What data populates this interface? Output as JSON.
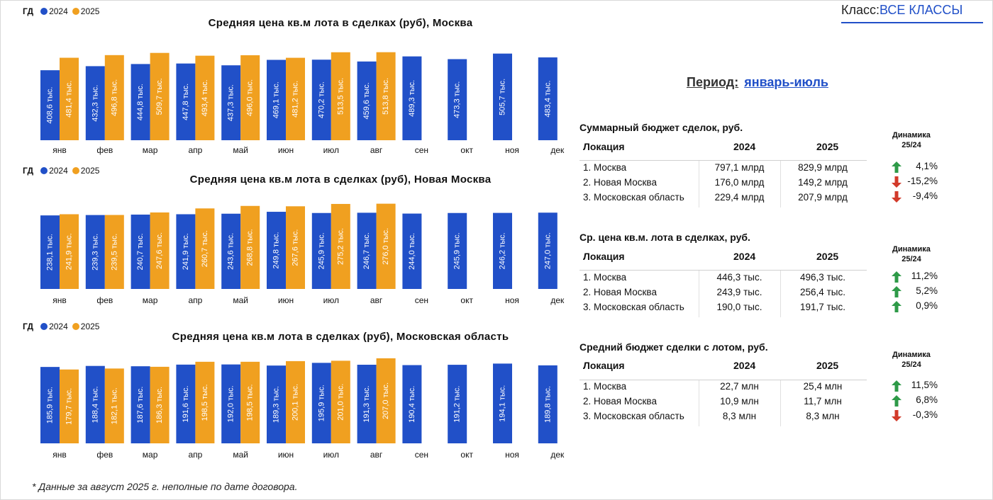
{
  "header": {
    "class_label": "Класс:",
    "class_value": "ВСЕ КЛАССЫ"
  },
  "period": {
    "label": "Период:",
    "value": "январь-июль"
  },
  "legend": {
    "gd": "ГД",
    "series": [
      {
        "name": "2024",
        "color": "#2150c8"
      },
      {
        "name": "2025",
        "color": "#f0a020"
      }
    ]
  },
  "colors": {
    "y2024": "#2150c8",
    "y2025": "#f0a020",
    "up": "#2e9a48",
    "down": "#d23a2a"
  },
  "chart_data": [
    {
      "type": "bar",
      "title": "Средняя цена кв.м  лота в сделках (руб), Москва",
      "categories": [
        "янв",
        "фев",
        "мар",
        "апр",
        "май",
        "июн",
        "июл",
        "авг",
        "сен",
        "окт",
        "ноя",
        "дек"
      ],
      "series": [
        {
          "name": "2024",
          "values": [
            408.6,
            432.3,
            444.8,
            447.8,
            437.3,
            469.1,
            470.2,
            459.6,
            489.3,
            473.3,
            505.7,
            483.4
          ],
          "labels": [
            "408,6 тыс.",
            "432,3 тыс.",
            "444,8 тыс.",
            "447,8 тыс.",
            "437,3 тыс.",
            "469,1 тыс.",
            "470,2 тыс.",
            "459,6 тыс.",
            "489,3 тыс.",
            "473,3 тыс.",
            "505,7 тыс.",
            "483,4 тыс."
          ]
        },
        {
          "name": "2025",
          "values": [
            481.4,
            496.8,
            509.7,
            493.4,
            496.0,
            481.2,
            513.5,
            513.8,
            null,
            null,
            null,
            null
          ],
          "labels": [
            "481,4 тыс.",
            "496,8 тыс.",
            "509,7 тыс.",
            "493,4 тыс.",
            "496,0 тыс.",
            "481,2 тыс.",
            "513,5 тыс.",
            "513,8 тыс.",
            "",
            "",
            "",
            ""
          ]
        }
      ],
      "xlabel": "",
      "ylabel": "",
      "ylim": [
        0,
        525
      ]
    },
    {
      "type": "bar",
      "title": "Средняя цена кв.м  лота в сделках (руб), Новая Москва",
      "categories": [
        "янв",
        "фев",
        "мар",
        "апр",
        "май",
        "июн",
        "июл",
        "авг",
        "сен",
        "окт",
        "ноя",
        "дек"
      ],
      "series": [
        {
          "name": "2024",
          "values": [
            238.1,
            239.3,
            240.7,
            241.9,
            243.6,
            249.8,
            245.9,
            246.7,
            244.0,
            245.9,
            246.2,
            247.0
          ],
          "labels": [
            "238,1 тыс.",
            "239,3 тыс.",
            "240,7 тыс.",
            "241,9 тыс.",
            "243,6 тыс.",
            "249,8 тыс.",
            "245,9 тыс.",
            "246,7 тыс.",
            "244,0 тыс.",
            "245,9 тыс.",
            "246,2 тыс.",
            "247,0 тыс."
          ]
        },
        {
          "name": "2025",
          "values": [
            241.9,
            239.5,
            247.6,
            260.7,
            268.8,
            267.6,
            275.2,
            276.0,
            null,
            null,
            null,
            null
          ],
          "labels": [
            "241,9 тыс.",
            "239,5 тыс.",
            "247,6 тыс.",
            "260,7 тыс.",
            "268,8 тыс.",
            "267,6 тыс.",
            "275,2 тыс.",
            "276,0 тыс.",
            "",
            "",
            "",
            ""
          ]
        }
      ],
      "xlabel": "",
      "ylabel": "",
      "ylim": [
        0,
        282
      ]
    },
    {
      "type": "bar",
      "title": "Средняя цена кв.м  лота в сделках (руб), Московская область",
      "categories": [
        "янв",
        "фев",
        "мар",
        "апр",
        "май",
        "июн",
        "июл",
        "авг",
        "сен",
        "окт",
        "ноя",
        "дек"
      ],
      "series": [
        {
          "name": "2024",
          "values": [
            185.9,
            188.4,
            187.6,
            191.6,
            192.0,
            189.3,
            195.9,
            191.3,
            190.4,
            191.2,
            194.1,
            189.8
          ],
          "labels": [
            "185,9 тыс.",
            "188,4 тыс.",
            "187,6 тыс.",
            "191,6 тыс.",
            "192,0 тыс.",
            "189,3 тыс.",
            "195,9 тыс.",
            "191,3 тыс.",
            "190,4 тыс.",
            "191,2 тыс.",
            "194,1 тыс.",
            "189,8 тыс."
          ]
        },
        {
          "name": "2025",
          "values": [
            179.7,
            182.1,
            186.3,
            198.5,
            198.5,
            200.1,
            201.0,
            207.0,
            null,
            null,
            null,
            null
          ],
          "labels": [
            "179,7 тыс.",
            "182,1 тыс.",
            "186,3 тыс.",
            "198,5 тыс.",
            "198,5 тыс.",
            "200,1 тыс.",
            "201,0 тыс.",
            "207,0 тыс.",
            "",
            "",
            "",
            ""
          ]
        }
      ],
      "xlabel": "",
      "ylabel": "",
      "ylim": [
        0,
        212
      ]
    }
  ],
  "tables": [
    {
      "title": "Суммарный бюджет сделок, руб.",
      "col_location": "Локация",
      "col_2024": "2024",
      "col_2025": "2025",
      "dynamics_head_1": "Динамика",
      "dynamics_head_2": "25/24",
      "rows": [
        {
          "location": "1. Москва",
          "v2024": "797,1 млрд",
          "v2025": "829,9 млрд",
          "dir": "up",
          "dyn": "4,1%"
        },
        {
          "location": "2. Новая Москва",
          "v2024": "176,0 млрд",
          "v2025": "149,2 млрд",
          "dir": "down",
          "dyn": "-15,2%"
        },
        {
          "location": "3. Московская область",
          "v2024": "229,4 млрд",
          "v2025": "207,9 млрд",
          "dir": "down",
          "dyn": "-9,4%"
        }
      ]
    },
    {
      "title": "Ср. цена кв.м. лота в сделках, руб.",
      "col_location": "Локация",
      "col_2024": "2024",
      "col_2025": "2025",
      "dynamics_head_1": "Динамика",
      "dynamics_head_2": "25/24",
      "rows": [
        {
          "location": "1. Москва",
          "v2024": "446,3 тыс.",
          "v2025": "496,3 тыс.",
          "dir": "up",
          "dyn": "11,2%"
        },
        {
          "location": "2. Новая Москва",
          "v2024": "243,9 тыс.",
          "v2025": "256,4 тыс.",
          "dir": "up",
          "dyn": "5,2%"
        },
        {
          "location": "3. Московская область",
          "v2024": "190,0 тыс.",
          "v2025": "191,7 тыс.",
          "dir": "up",
          "dyn": "0,9%"
        }
      ]
    },
    {
      "title": "Средний бюджет сделки с лотом, руб.",
      "col_location": "Локация",
      "col_2024": "2024",
      "col_2025": "2025",
      "dynamics_head_1": "Динамика",
      "dynamics_head_2": "25/24",
      "rows": [
        {
          "location": "1. Москва",
          "v2024": "22,7 млн",
          "v2025": "25,4 млн",
          "dir": "up",
          "dyn": "11,5%"
        },
        {
          "location": "2. Новая Москва",
          "v2024": "10,9 млн",
          "v2025": "11,7 млн",
          "dir": "up",
          "dyn": "6,8%"
        },
        {
          "location": "3. Московская область",
          "v2024": "8,3 млн",
          "v2025": "8,3 млн",
          "dir": "down",
          "dyn": "-0,3%"
        }
      ]
    }
  ],
  "footnote": "* Данные за август 2025 г. неполные по дате договора."
}
